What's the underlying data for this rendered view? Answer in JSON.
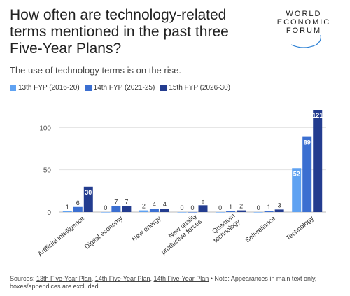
{
  "title": "How often are technology-related terms mentioned in the past three Five-Year Plans?",
  "subtitle": "The use of technology terms is on the rise.",
  "logo": {
    "line1": "WORLD",
    "line2": "ECONOMIC",
    "line3": "FORUM"
  },
  "colors": {
    "s1": "#5fa2f2",
    "s2": "#3b6fd1",
    "s3": "#233c8f"
  },
  "footer": {
    "prefix": "Sources: ",
    "link1": "13th Five-Year Plan",
    "sep1": ", ",
    "link2": "14th Five-Year Plan",
    "sep2": ", ",
    "link3": "14th Five-Year Plan",
    "note": " • Note: Appearances in main text only, boxes/appendices are excluded."
  },
  "chart_data": {
    "type": "bar",
    "categories": [
      "Artificial intelligence",
      "Digital economy",
      "New energy",
      "New quality productive forces",
      "Quantum technology",
      "Self-reliance",
      "Technology"
    ],
    "series": [
      {
        "name": "13th FYP (2016-20)",
        "values": [
          1,
          0,
          2,
          0,
          0,
          0,
          52
        ]
      },
      {
        "name": "14th FYP (2021-25)",
        "values": [
          6,
          7,
          4,
          0,
          1,
          1,
          89
        ]
      },
      {
        "name": "15th FYP (2026-30)",
        "values": [
          30,
          7,
          4,
          8,
          2,
          3,
          121
        ]
      }
    ],
    "yticks": [
      0,
      50,
      100
    ],
    "ylim": [
      0,
      121
    ],
    "grid": true,
    "legend": "top-left"
  }
}
